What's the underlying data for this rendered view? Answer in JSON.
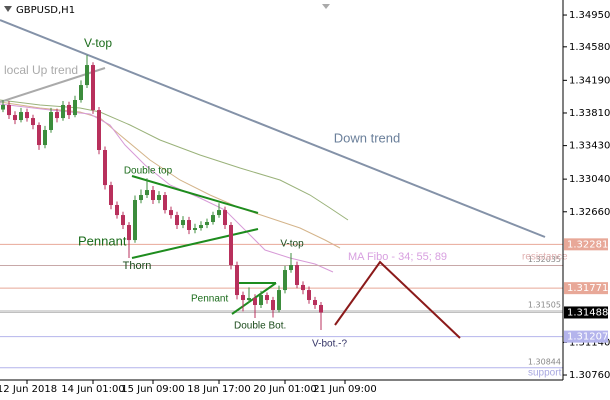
{
  "chart_data": {
    "type": "candlestick",
    "symbol": "GBPUSD,H1",
    "up_color": "#3c8c3c",
    "down_color": "#b8305c",
    "ylim": [
      1.30702,
      1.35125
    ],
    "yticks": [
      {
        "value": 1.3495,
        "label": "1.34950"
      },
      {
        "value": 1.3458,
        "label": "1.34580"
      },
      {
        "value": 1.3419,
        "label": "1.34190"
      },
      {
        "value": 1.3381,
        "label": "1.33810"
      },
      {
        "value": 1.3343,
        "label": "1.33430"
      },
      {
        "value": 1.3304,
        "label": "1.33040"
      },
      {
        "value": 1.3266,
        "label": "1.32660"
      },
      {
        "value": 1.3114,
        "label": "1.31140"
      },
      {
        "value": 1.3076,
        "label": "1.30760"
      }
    ],
    "xlim": [
      -0.5,
      93.5
    ],
    "xticks": [
      {
        "value": 4,
        "label": "12 Jun 2018"
      },
      {
        "value": 15,
        "label": "14 Jun 01:00"
      },
      {
        "value": 25,
        "label": "15 Jun 09:00"
      },
      {
        "value": 36,
        "label": "18 Jun 17:00"
      },
      {
        "value": 47,
        "label": "20 Jun 01:00"
      },
      {
        "value": 57,
        "label": "21 Jun 09:00"
      }
    ],
    "ohlc": [
      [
        1.3385,
        1.3396,
        1.3382,
        1.33903
      ],
      [
        1.33903,
        1.3395,
        1.3374,
        1.33786
      ],
      [
        1.33786,
        1.3383,
        1.3368,
        1.33728
      ],
      [
        1.33728,
        1.3387,
        1.337,
        1.33821
      ],
      [
        1.33821,
        1.3386,
        1.3371,
        1.33751
      ],
      [
        1.33751,
        1.3379,
        1.3362,
        1.3367
      ],
      [
        1.3367,
        1.337,
        1.3338,
        1.33437
      ],
      [
        1.33437,
        1.3366,
        1.334,
        1.33612
      ],
      [
        1.33612,
        1.3387,
        1.3358,
        1.33821
      ],
      [
        1.33821,
        1.3386,
        1.337,
        1.33751
      ],
      [
        1.33751,
        1.3395,
        1.3372,
        1.33903
      ],
      [
        1.33903,
        1.3394,
        1.3374,
        1.33786
      ],
      [
        1.33786,
        1.3401,
        1.3376,
        1.33961
      ],
      [
        1.33961,
        1.3419,
        1.3393,
        1.34135
      ],
      [
        1.34135,
        1.34484,
        1.341,
        1.34368
      ],
      [
        1.34368,
        1.344,
        1.338,
        1.33844
      ],
      [
        1.33844,
        1.3388,
        1.3333,
        1.33379
      ],
      [
        1.33379,
        1.3342,
        1.3292,
        1.32971
      ],
      [
        1.32971,
        1.3301,
        1.3269,
        1.32739
      ],
      [
        1.32739,
        1.3278,
        1.3258,
        1.32622
      ],
      [
        1.32622,
        1.3266,
        1.3246,
        1.32506
      ],
      [
        1.32506,
        1.3254,
        1.32122,
        1.32331
      ],
      [
        1.32331,
        1.3285,
        1.323,
        1.32797
      ],
      [
        1.32797,
        1.3292,
        1.3276,
        1.32855
      ],
      [
        1.32855,
        1.3305,
        1.3282,
        1.32913
      ],
      [
        1.32913,
        1.3296,
        1.3275,
        1.32797
      ],
      [
        1.32797,
        1.329,
        1.3276,
        1.32855
      ],
      [
        1.32855,
        1.3289,
        1.3264,
        1.3268
      ],
      [
        1.3268,
        1.3272,
        1.3258,
        1.32622
      ],
      [
        1.32622,
        1.3266,
        1.3246,
        1.32506
      ],
      [
        1.32506,
        1.3261,
        1.3247,
        1.32564
      ],
      [
        1.32564,
        1.326,
        1.324,
        1.32448
      ],
      [
        1.32448,
        1.3252,
        1.3241,
        1.32471
      ],
      [
        1.32471,
        1.3255,
        1.3244,
        1.32506
      ],
      [
        1.32506,
        1.3258,
        1.3247,
        1.32541
      ],
      [
        1.32541,
        1.3266,
        1.3251,
        1.32622
      ],
      [
        1.32622,
        1.3276,
        1.3259,
        1.3268
      ],
      [
        1.3268,
        1.3272,
        1.3246,
        1.32506
      ],
      [
        1.32506,
        1.3254,
        1.3199,
        1.3204
      ],
      [
        1.3204,
        1.3208,
        1.3164,
        1.31691
      ],
      [
        1.31691,
        1.3173,
        1.315,
        1.31633
      ],
      [
        1.31633,
        1.3178,
        1.316,
        1.31656
      ],
      [
        1.31656,
        1.317,
        1.31423,
        1.31575
      ],
      [
        1.31575,
        1.3174,
        1.3154,
        1.31691
      ],
      [
        1.31691,
        1.3172,
        1.3159,
        1.31633
      ],
      [
        1.31633,
        1.3167,
        1.3143,
        1.31517
      ],
      [
        1.31517,
        1.318,
        1.3149,
        1.31749
      ],
      [
        1.31749,
        1.3203,
        1.3171,
        1.31982
      ],
      [
        1.31982,
        1.3218,
        1.3195,
        1.3204
      ],
      [
        1.3204,
        1.3208,
        1.3177,
        1.31808
      ],
      [
        1.31808,
        1.3185,
        1.317,
        1.31749
      ],
      [
        1.31749,
        1.3179,
        1.3159,
        1.31633
      ],
      [
        1.31633,
        1.3167,
        1.3153,
        1.31575
      ],
      [
        1.31575,
        1.3161,
        1.31284,
        1.31488
      ]
    ],
    "levels": [
      {
        "value": 1.32281,
        "kind": "tag",
        "color": "#e8a898"
      },
      {
        "value": 1.32035,
        "kind": "text",
        "color": "#c8a8a8"
      },
      {
        "value": 1.31771,
        "kind": "tag",
        "color": "#e8a898"
      },
      {
        "value": 1.31505,
        "kind": "text",
        "color": "#b0b0b0"
      },
      {
        "value": 1.31488,
        "kind": "tag",
        "color": "#000000"
      },
      {
        "value": 1.31207,
        "kind": "tag",
        "color": "#b4b4ec"
      },
      {
        "value": 1.30844,
        "kind": "text",
        "color": "#b4b4ec"
      }
    ],
    "annotations": [
      "V-top",
      "local  Up trend",
      "Down trend",
      "Double top",
      "Pennant",
      "Thorn",
      "Pennant",
      "Double Bot.",
      "V-top",
      "V-bot.-?",
      "MA Fibo - 34; 55; 89",
      "resistance",
      "support"
    ]
  }
}
